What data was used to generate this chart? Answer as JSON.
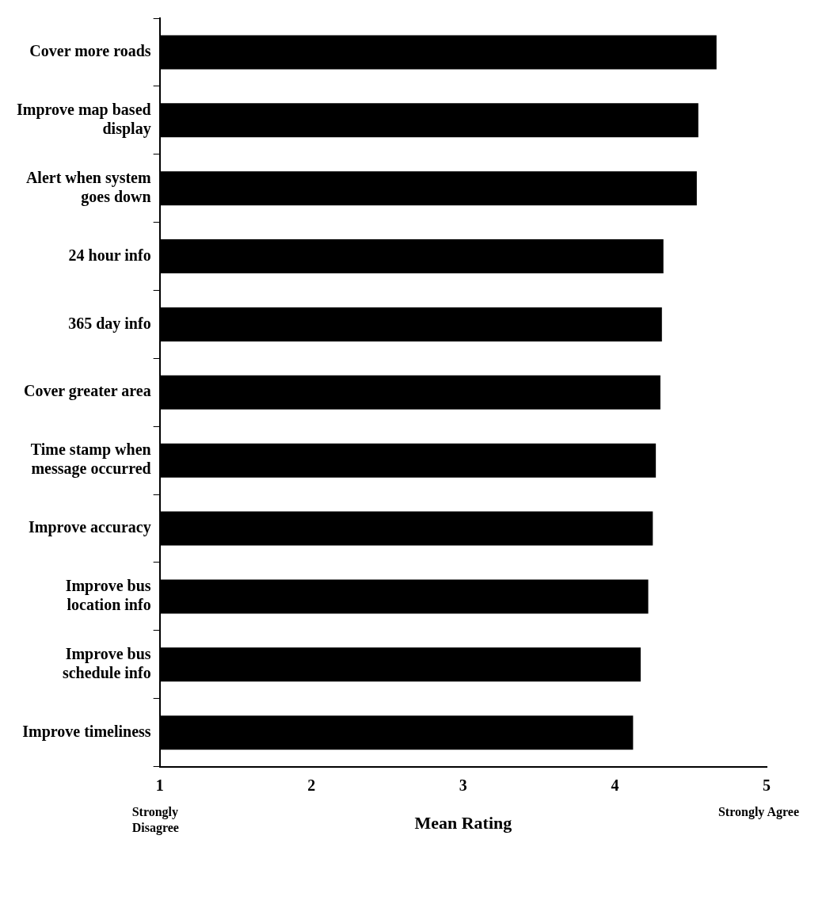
{
  "chart_data": {
    "type": "bar",
    "orientation": "horizontal",
    "xlabel": "Mean Rating",
    "categories": [
      "Cover more roads",
      "Improve map based display",
      "Alert when system goes down",
      "24 hour info",
      "365 day info",
      "Cover greater area",
      "Time stamp when message occurred",
      "Improve accuracy",
      "Improve bus location info",
      "Improve bus schedule info",
      "Improve timeliness"
    ],
    "values": [
      4.67,
      4.55,
      4.54,
      4.32,
      4.31,
      4.3,
      4.27,
      4.25,
      4.22,
      4.17,
      4.12
    ],
    "color": "#000000",
    "xlim": [
      1,
      5
    ],
    "xticks": [
      1,
      2,
      3,
      4,
      5
    ],
    "grid": false,
    "legend": false,
    "annotations": [
      "Strongly Disagree",
      "Strongly Agree"
    ]
  }
}
